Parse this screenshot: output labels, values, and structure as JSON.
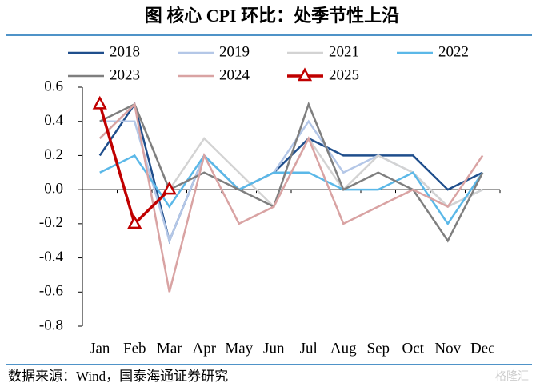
{
  "chart_data": {
    "type": "line",
    "title": "图  核心 CPI 环比：处季节性上沿",
    "source": "数据来源：Wind，国泰海通证券研究",
    "watermark": "格隆汇",
    "categories": [
      "Jan",
      "Feb",
      "Mar",
      "Apr",
      "May",
      "Jun",
      "Jul",
      "Aug",
      "Sep",
      "Oct",
      "Nov",
      "Dec"
    ],
    "ylim": [
      -0.8,
      0.6
    ],
    "yticks": [
      0.6,
      0.4,
      0.2,
      {
        "value": 0,
        "label": "0.0"
      },
      -0.2,
      -0.4,
      -0.6,
      -0.8
    ],
    "series": [
      {
        "name": "2018",
        "color": "#1f4e8c",
        "values": [
          0.2,
          0.5,
          -0.3,
          0.2,
          0.0,
          0.1,
          0.3,
          0.2,
          0.2,
          0.2,
          0.0,
          0.1
        ]
      },
      {
        "name": "2019",
        "color": "#b4c7e7",
        "values": [
          0.4,
          0.4,
          -0.3,
          0.2,
          0.0,
          0.1,
          0.4,
          0.1,
          0.2,
          0.1,
          -0.1,
          0.0
        ]
      },
      {
        "name": "2021",
        "color": "#d3d3d3",
        "values": [
          0.3,
          0.5,
          0.0,
          0.3,
          0.1,
          -0.1,
          0.3,
          0.0,
          0.2,
          0.1,
          -0.1,
          0.0
        ]
      },
      {
        "name": "2022",
        "color": "#5bb8e8",
        "values": [
          0.1,
          0.2,
          -0.1,
          0.2,
          0.0,
          0.1,
          0.1,
          0.0,
          0.0,
          0.1,
          -0.2,
          0.1
        ]
      },
      {
        "name": "2023",
        "color": "#7f7f7f",
        "values": [
          0.4,
          0.5,
          0.0,
          0.1,
          0.0,
          -0.1,
          0.5,
          0.0,
          0.1,
          0.0,
          -0.3,
          0.1
        ]
      },
      {
        "name": "2024",
        "color": "#d9a3a3",
        "values": [
          0.3,
          0.5,
          -0.6,
          0.2,
          -0.2,
          -0.1,
          0.3,
          -0.2,
          -0.1,
          0.0,
          -0.1,
          0.2
        ]
      },
      {
        "name": "2025",
        "color": "#c00000",
        "marker": "triangle",
        "values": [
          0.5,
          -0.2,
          0.0,
          null,
          null,
          null,
          null,
          null,
          null,
          null,
          null,
          null
        ]
      }
    ]
  }
}
